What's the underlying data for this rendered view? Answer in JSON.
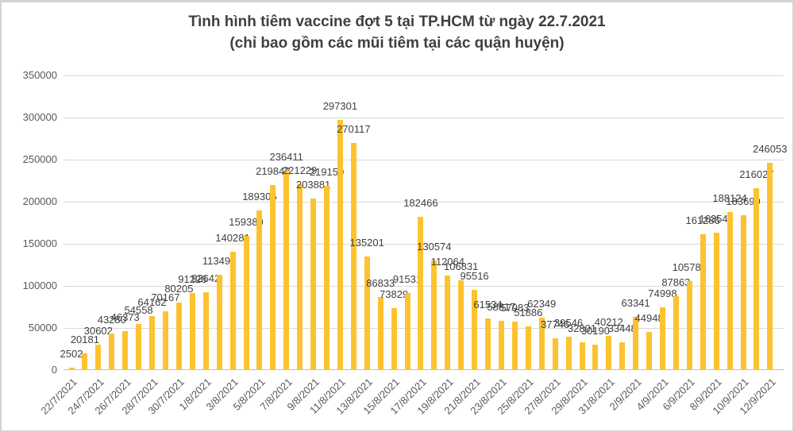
{
  "title": {
    "line1": "Tình hình tiêm vaccine đợt 5 tại TP.HCM từ ngày 22.7.2021",
    "line2": "(chỉ bao gồm các mũi tiêm tại các quận huyện)"
  },
  "chart_data": {
    "type": "bar",
    "title": "Tình hình tiêm vaccine đợt 5 tại TP.HCM từ ngày 22.7.2021",
    "subtitle": "(chỉ bao gồm các mũi tiêm tại các quận huyện)",
    "categories": [
      "22/7/2021",
      "23/7/2021",
      "24/7/2021",
      "25/7/2021",
      "26/7/2021",
      "27/7/2021",
      "28/7/2021",
      "29/7/2021",
      "30/7/2021",
      "31/7/2021",
      "1/8/2021",
      "2/8/2021",
      "3/8/2021",
      "4/8/2021",
      "5/8/2021",
      "6/8/2021",
      "7/8/2021",
      "8/8/2021",
      "9/8/2021",
      "10/8/2021",
      "11/8/2021",
      "12/8/2021",
      "13/8/2021",
      "14/8/2021",
      "15/8/2021",
      "16/8/2021",
      "17/8/2021",
      "18/8/2021",
      "19/8/2021",
      "20/8/2021",
      "21/8/2021",
      "22/8/2021",
      "23/8/2021",
      "24/8/2021",
      "25/8/2021",
      "26/8/2021",
      "27/8/2021",
      "28/8/2021",
      "29/8/2021",
      "30/8/2021",
      "31/8/2021",
      "1/9/2021",
      "2/9/2021",
      "3/9/2021",
      "4/9/2021",
      "5/9/2021",
      "6/9/2021",
      "7/9/2021",
      "8/9/2021",
      "9/9/2021",
      "10/9/2021",
      "11/9/2021",
      "12/9/2021"
    ],
    "values": [
      2502,
      20181,
      30602,
      43280,
      46373,
      54558,
      64162,
      70167,
      80205,
      91226,
      92642,
      113495,
      140281,
      159389,
      189306,
      219842,
      236411,
      221229,
      203881,
      219150,
      297301,
      270117,
      135201,
      86833,
      73829,
      91531,
      182466,
      130574,
      112064,
      106831,
      95516,
      61534,
      58817,
      57983,
      51886,
      62349,
      37746,
      39546,
      32801,
      30190,
      40212,
      33448,
      63341,
      44948,
      74998,
      87863,
      105781,
      161286,
      163548,
      188124,
      183699,
      216027,
      246053
    ],
    "data_labels": true,
    "x_tick_every": 2,
    "x_tick_labels": [
      "22/7/2021",
      "24/7/2021",
      "26/7/2021",
      "28/7/2021",
      "30/7/2021",
      "1/8/2021",
      "3/8/2021",
      "5/8/2021",
      "7/8/2021",
      "9/8/2021",
      "11/8/2021",
      "13/8/2021",
      "15/8/2021",
      "17/8/2021",
      "19/8/2021",
      "21/8/2021",
      "23/8/2021",
      "25/8/2021",
      "27/8/2021",
      "29/8/2021",
      "31/8/2021",
      "2/9/2021",
      "4/9/2021",
      "6/9/2021",
      "8/9/2021",
      "10/9/2021",
      "12/9/2021"
    ],
    "ylim": [
      0,
      350000
    ],
    "y_tick_step": 50000,
    "y_tick_labels": [
      "0",
      "50000",
      "100000",
      "150000",
      "200000",
      "250000",
      "300000",
      "350000"
    ],
    "grid": true,
    "legend": "none",
    "colors": {
      "bar": "#FCC32F",
      "data_label": "#404040",
      "axis_label": "#595959",
      "gridline": "#D9D9D9",
      "axis_line": "#BFBFBF",
      "title": "#3F3F3F"
    }
  }
}
